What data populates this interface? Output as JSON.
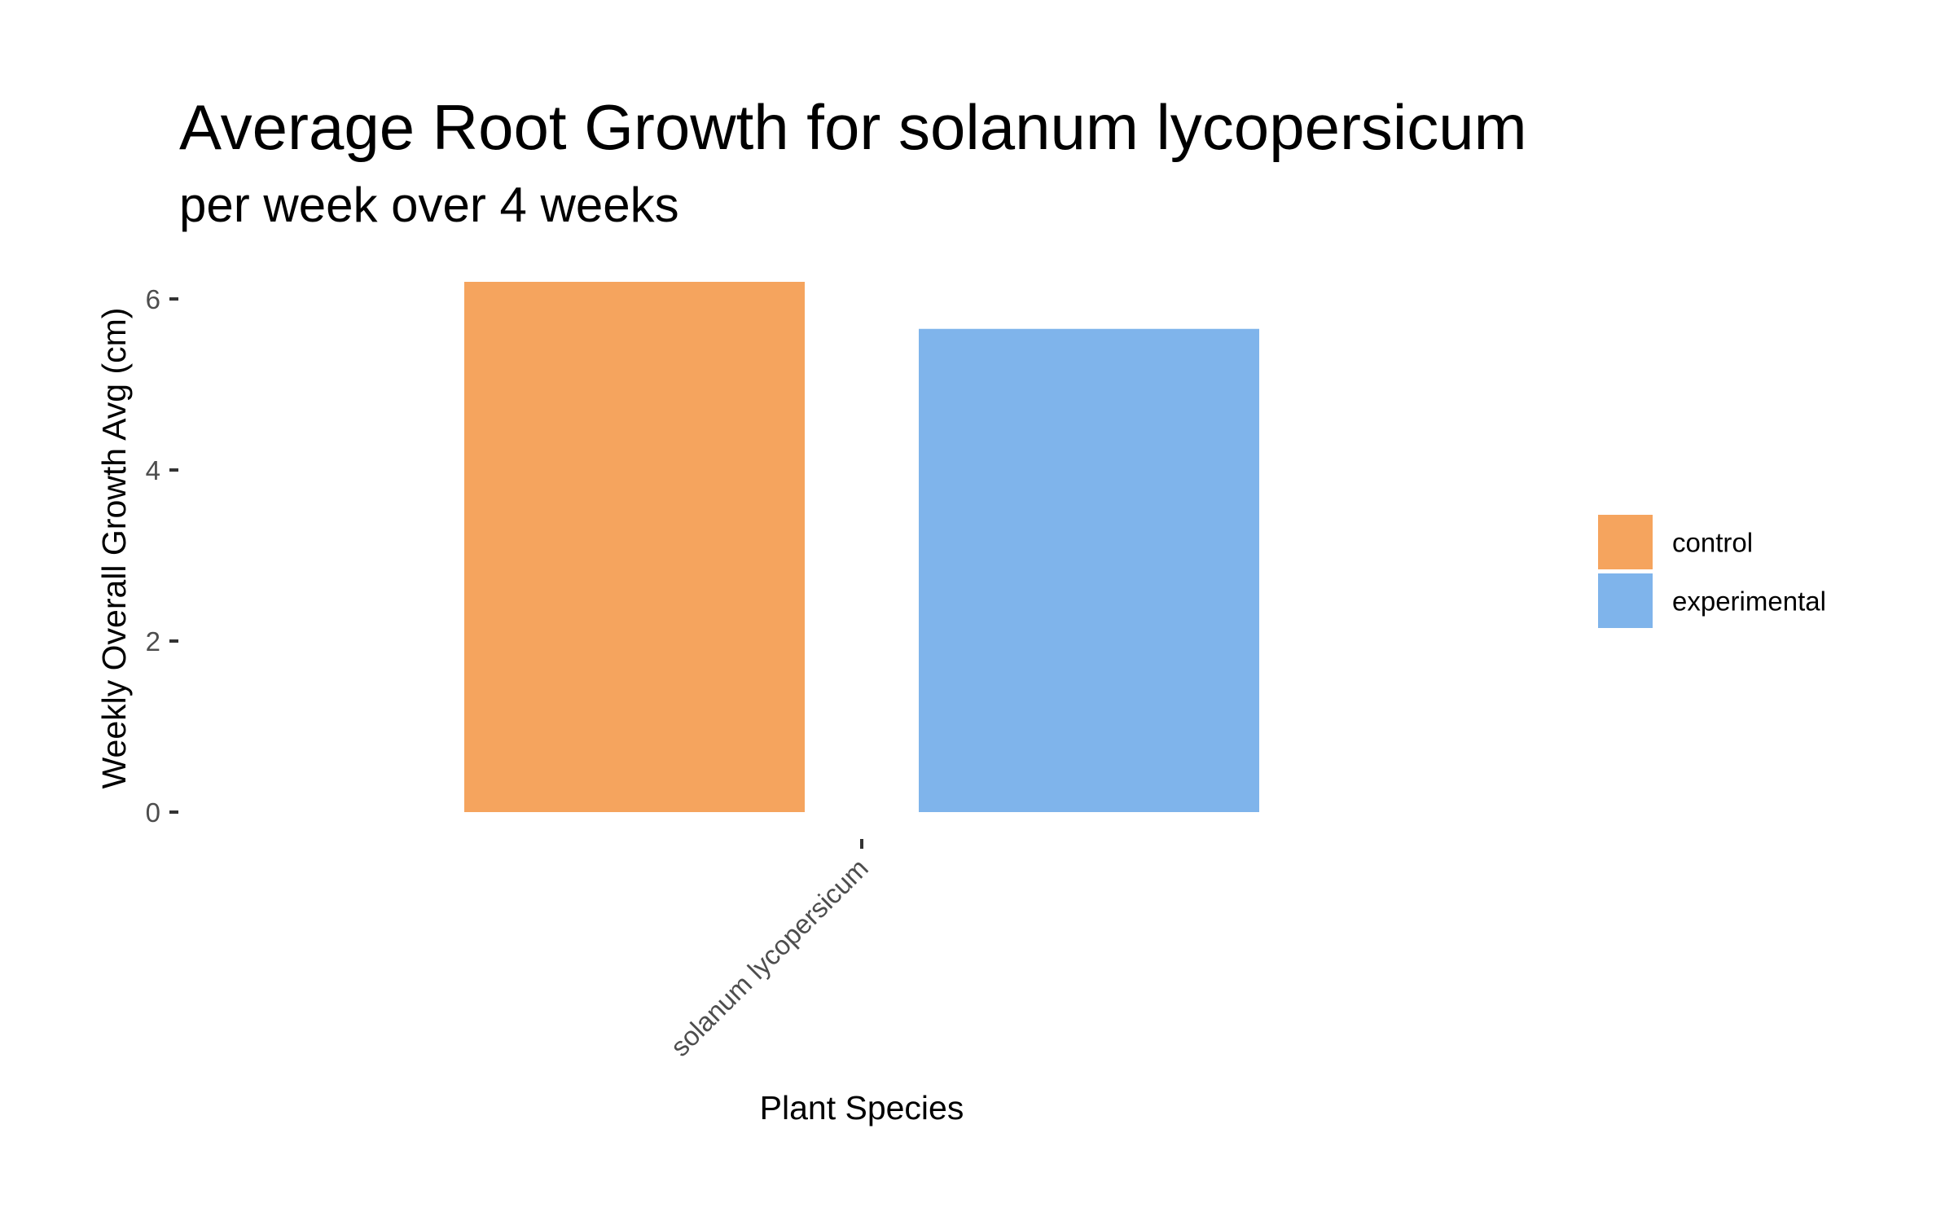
{
  "chart_data": {
    "type": "bar",
    "title": "Average Root Growth for solanum lycopersicum",
    "subtitle": "per week over 4 weeks",
    "xlabel": "Plant Species",
    "ylabel": "Weekly Overall Growth Avg (cm)",
    "categories": [
      "solanum lycopersicum"
    ],
    "series": [
      {
        "name": "control",
        "values": [
          6.2
        ],
        "color": "#F5A45E"
      },
      {
        "name": "experimental",
        "values": [
          5.65
        ],
        "color": "#7FB4EB"
      }
    ],
    "yticks": [
      0,
      2,
      4,
      6
    ],
    "ytick_labels": [
      "0",
      "2",
      "4",
      "6"
    ],
    "ylim": [
      0,
      6.5
    ],
    "grid": false,
    "legend_position": "right",
    "x_tick_label_rotation": -45
  }
}
